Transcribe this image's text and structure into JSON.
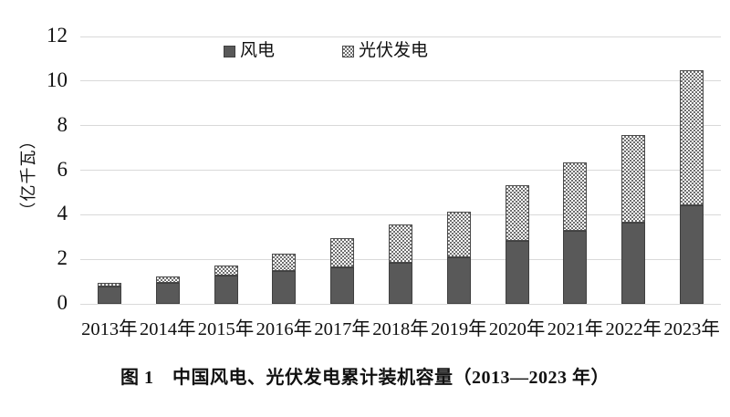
{
  "caption": "图 1　中国风电、光伏发电累计装机容量（2013—2023 年）",
  "colors": {
    "bar_wind": "#595959",
    "bar_border": "#3f3f3f",
    "pattern_dot": "#6f6f6f",
    "pattern_bg": "#ffffff",
    "gridline": "#d9d9d9",
    "text": "#111111"
  },
  "chart_data": {
    "type": "bar",
    "stacked": true,
    "categories": [
      "2013年",
      "2014年",
      "2015年",
      "2016年",
      "2017年",
      "2018年",
      "2019年",
      "2020年",
      "2021年",
      "2022年",
      "2023年"
    ],
    "series": [
      {
        "name": "风电",
        "style": "solid-dark-gray",
        "values": [
          0.76,
          0.96,
          1.29,
          1.49,
          1.64,
          1.84,
          2.1,
          2.81,
          3.28,
          3.65,
          4.41
        ]
      },
      {
        "name": "光伏发电",
        "style": "checker-pattern",
        "values": [
          0.19,
          0.28,
          0.43,
          0.77,
          1.3,
          1.74,
          2.04,
          2.53,
          3.06,
          3.93,
          6.09
        ]
      }
    ],
    "totals": [
      0.95,
      1.24,
      1.72,
      2.26,
      2.94,
      3.58,
      4.14,
      5.34,
      6.34,
      7.58,
      10.5
    ],
    "ylabel": "（亿千瓦）",
    "ylim": [
      0,
      12
    ],
    "yticks": [
      0,
      2,
      4,
      6,
      8,
      10,
      12
    ],
    "grid": true,
    "legend_position": "top-center"
  }
}
